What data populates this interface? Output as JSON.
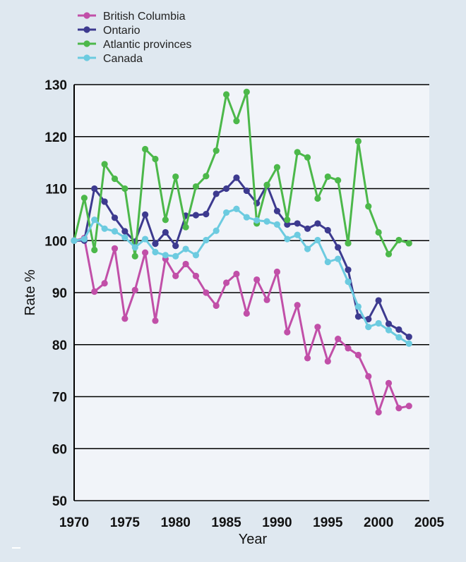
{
  "chart_data": {
    "type": "line",
    "title": "",
    "xlabel": "Year",
    "ylabel": "Rate %",
    "xlim": [
      1970,
      2005
    ],
    "ylim": [
      50,
      130
    ],
    "x_ticks": [
      1970,
      1975,
      1980,
      1985,
      1990,
      1995,
      2000,
      2005
    ],
    "y_ticks": [
      50,
      60,
      70,
      80,
      90,
      100,
      110,
      120,
      130
    ],
    "grid": "horizontal",
    "legend_position": "top-left, above plot",
    "colors": {
      "page_background": "#dfe8f0",
      "plot_background": "#f1f4f9",
      "gridline": "#000000"
    },
    "series": [
      {
        "name": "British Columbia",
        "color": "#c14fa8",
        "x": [
          1970,
          1971,
          1972,
          1973,
          1974,
          1975,
          1976,
          1977,
          1978,
          1979,
          1980,
          1981,
          1982,
          1983,
          1984,
          1985,
          1986,
          1987,
          1988,
          1989,
          1990,
          1991,
          1992,
          1993,
          1994,
          1995,
          1996,
          1997,
          1998,
          1999,
          2000,
          2001,
          2002,
          2003
        ],
        "values": [
          100,
          100.5,
          90.2,
          91.8,
          98.5,
          85,
          90.5,
          97.7,
          84.6,
          96.5,
          93.2,
          95.5,
          93.2,
          90,
          87.5,
          91.9,
          93.6,
          86,
          92.5,
          88.6,
          94,
          82.4,
          87.6,
          77.4,
          83.4,
          76.8,
          81.1,
          79.3,
          78,
          73.9,
          67,
          72.6,
          67.8,
          68.2
        ]
      },
      {
        "name": "Ontario",
        "color": "#3d3a8f",
        "x": [
          1970,
          1971,
          1972,
          1973,
          1974,
          1975,
          1976,
          1977,
          1978,
          1979,
          1980,
          1981,
          1982,
          1983,
          1984,
          1985,
          1986,
          1987,
          1988,
          1989,
          1990,
          1991,
          1992,
          1993,
          1994,
          1995,
          1996,
          1997,
          1998,
          1999,
          2000,
          2001,
          2002,
          2003
        ],
        "values": [
          100,
          100,
          110,
          107.5,
          104.4,
          101.8,
          99.8,
          105,
          99.4,
          101.6,
          99,
          104.8,
          104.9,
          105.1,
          109,
          110,
          112.1,
          109.6,
          107.2,
          110.7,
          105.7,
          103.1,
          103.3,
          102.3,
          103.3,
          102,
          98.7,
          94.4,
          85.4,
          84.9,
          88.5,
          84,
          82.9,
          81.5
        ]
      },
      {
        "name": "Atlantic provinces",
        "color": "#4cb84a",
        "x": [
          1970,
          1971,
          1972,
          1973,
          1974,
          1975,
          1976,
          1977,
          1978,
          1979,
          1980,
          1981,
          1982,
          1983,
          1984,
          1985,
          1986,
          1987,
          1988,
          1989,
          1990,
          1991,
          1992,
          1993,
          1994,
          1995,
          1996,
          1997,
          1998,
          1999,
          2000,
          2001,
          2002,
          2003
        ],
        "values": [
          100,
          108.2,
          98.2,
          114.7,
          111.9,
          110,
          97,
          117.6,
          115.7,
          104,
          112.3,
          102.6,
          110.4,
          112.4,
          117.3,
          128.1,
          123,
          128.6,
          103.3,
          110.7,
          114.1,
          104,
          117,
          116,
          108.1,
          112.3,
          111.6,
          99.5,
          119.1,
          106.6,
          101.6,
          97.4,
          100.1,
          99.5
        ]
      },
      {
        "name": "Canada",
        "color": "#6ccbe0",
        "x": [
          1970,
          1971,
          1972,
          1973,
          1974,
          1975,
          1976,
          1977,
          1978,
          1979,
          1980,
          1981,
          1982,
          1983,
          1984,
          1985,
          1986,
          1987,
          1988,
          1989,
          1990,
          1991,
          1992,
          1993,
          1994,
          1995,
          1996,
          1997,
          1998,
          1999,
          2000,
          2001,
          2002,
          2003
        ],
        "values": [
          100,
          100.3,
          104,
          102.3,
          101.8,
          100.6,
          98.7,
          100.3,
          97.8,
          97.2,
          97,
          98.4,
          97.2,
          100.1,
          101.9,
          105.4,
          106.1,
          104.5,
          103.9,
          103.7,
          103.1,
          100.3,
          101.1,
          98.4,
          100.1,
          95.9,
          96.5,
          92.1,
          87.3,
          83.4,
          84.1,
          82.8,
          81.4,
          80.2
        ]
      }
    ]
  }
}
